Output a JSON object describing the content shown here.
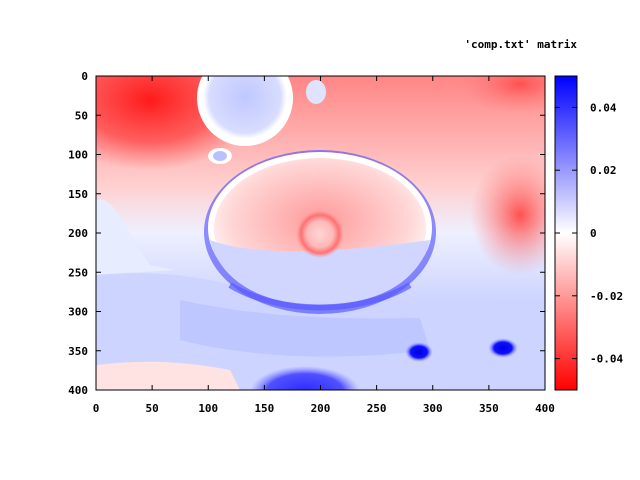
{
  "chart_data": {
    "type": "heatmap",
    "title": "'comp.txt' matrix",
    "xlabel": "",
    "ylabel": "",
    "xlim": [
      0,
      400
    ],
    "ylim": [
      0,
      400
    ],
    "y_reversed": true,
    "x_ticks": [
      0,
      50,
      100,
      150,
      200,
      250,
      300,
      350,
      400
    ],
    "y_ticks": [
      0,
      50,
      100,
      150,
      200,
      250,
      300,
      350,
      400
    ],
    "colorbar": {
      "range": [
        -0.05,
        0.05
      ],
      "ticks": [
        0.04,
        0.02,
        0,
        -0.02,
        -0.04
      ],
      "tick_labels": [
        "0.04",
        "0.02",
        "0",
        "-0.02",
        "-0.04"
      ],
      "colors": {
        "negative": "#ff0000",
        "zero": "#ffffff",
        "positive": "#0000ff"
      }
    },
    "grid": false
  }
}
